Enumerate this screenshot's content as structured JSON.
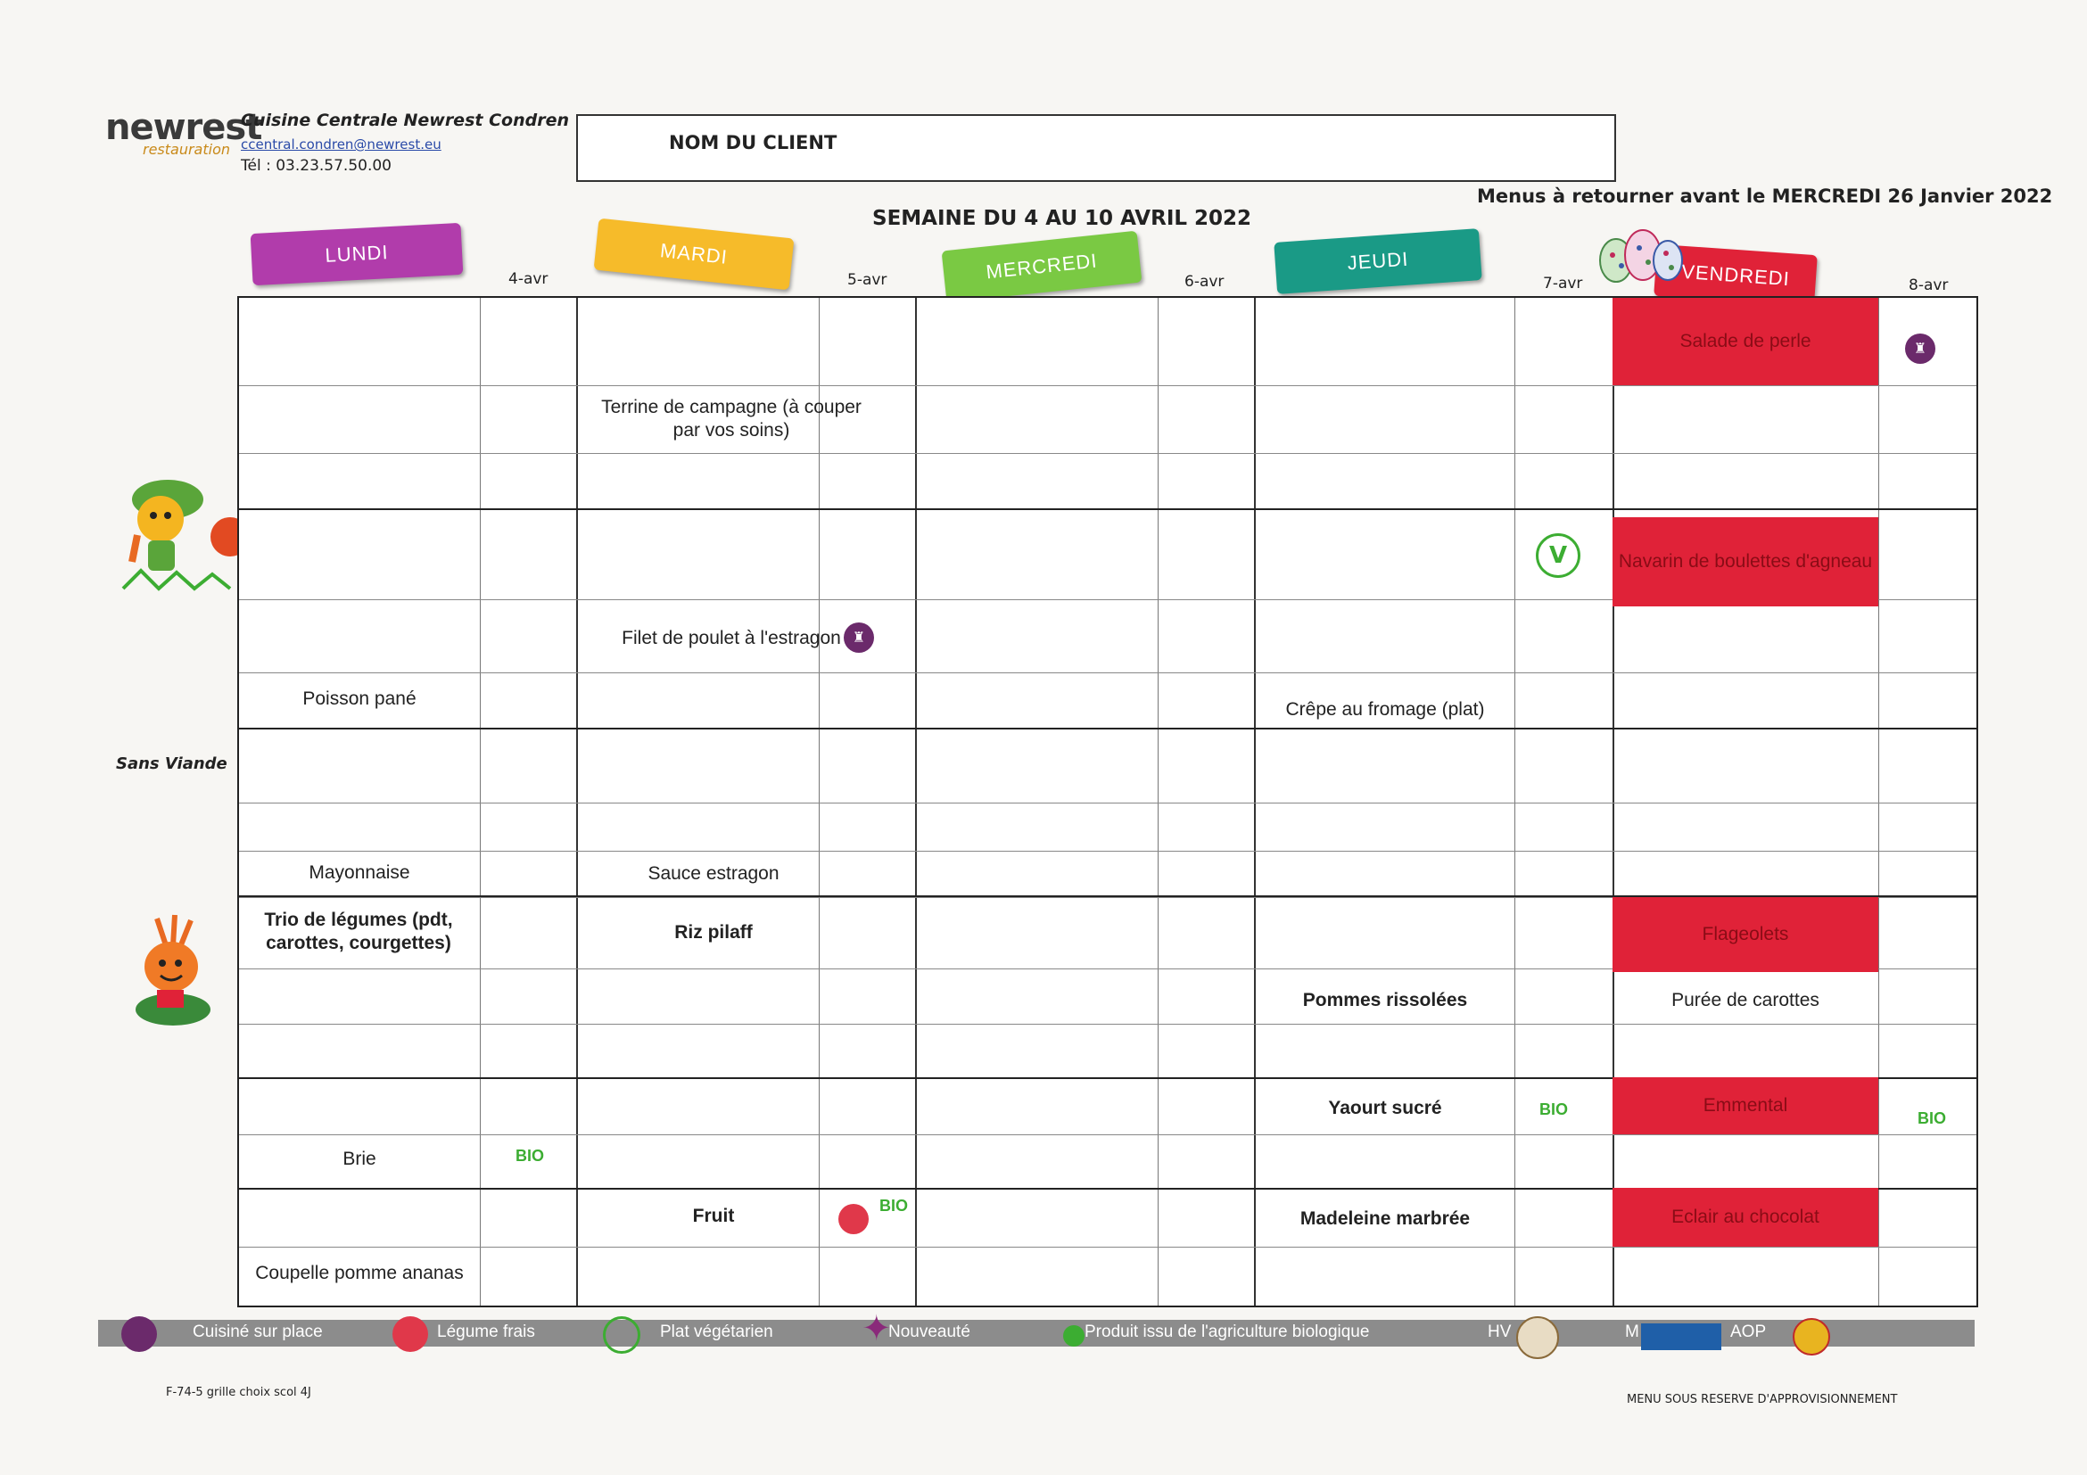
{
  "header": {
    "logo": "newrest",
    "logo_sub": "restauration",
    "org_name": "Cuisine Centrale Newrest Condren",
    "email": "ccentral.condren@newrest.eu",
    "tel": "Tél : 03.23.57.50.00",
    "client_label": "NOM DU CLIENT",
    "deadline": "Menus à retourner avant le MERCREDI 26 Janvier 2022",
    "week": "SEMAINE DU 4 AU 10 AVRIL 2022"
  },
  "days": [
    {
      "label": "LUNDI",
      "date": "4-avr",
      "color": "#b13cab"
    },
    {
      "label": "MARDI",
      "date": "5-avr",
      "color": "#f6bb2a"
    },
    {
      "label": "MERCREDI",
      "date": "6-avr",
      "color": "#7ac943"
    },
    {
      "label": "JEUDI",
      "date": "7-avr",
      "color": "#1a9a86"
    },
    {
      "label": "VENDREDI",
      "date": "8-avr",
      "color": "#e02238"
    }
  ],
  "side_labels": {
    "sans_viande": "Sans Viande"
  },
  "menu": {
    "lundi": {
      "poisson": "Poisson pané",
      "sauce": "Mayonnaise",
      "legumes": "Trio de légumes (pdt, carottes, courgettes)",
      "fromage": "Brie",
      "dessert": "Coupelle pomme ananas",
      "badge_bio": "BIO"
    },
    "mardi": {
      "entree": "Terrine de campagne (à couper par vos soins)",
      "plat": "Filet de poulet à l'estragon",
      "sauce": "Sauce estragon",
      "legumes": "Riz pilaff",
      "dessert": "Fruit",
      "badge_bio": "BIO"
    },
    "jeudi": {
      "plat": "Crêpe au fromage (plat)",
      "legumes": "Pommes rissolées",
      "laitage": "Yaourt sucré",
      "dessert": "Madeleine marbrée",
      "badge_bio": "BIO",
      "badge_veg": "V"
    },
    "vendredi": {
      "entree": "Salade de perle",
      "plat": "Navarin de boulettes d'agneau",
      "legumes1": "Flageolets",
      "legumes2": "Purée de carottes",
      "fromage": "Emmental",
      "dessert": "Eclair au chocolat",
      "badge_bio": "BIO"
    }
  },
  "legend": {
    "cuisine": "Cuisiné sur place",
    "legume": "Légume frais",
    "vege": "Plat végétarien",
    "nouveaute": "Nouveauté",
    "bio": "Produit issu de l'agriculture biologique",
    "hv": "HV",
    "m": "M",
    "aop": "AOP"
  },
  "footer": {
    "ref": "F-74-5 grille choix scol 4J",
    "note": "MENU SOUS RESERVE D'APPROVISIONNEMENT"
  }
}
